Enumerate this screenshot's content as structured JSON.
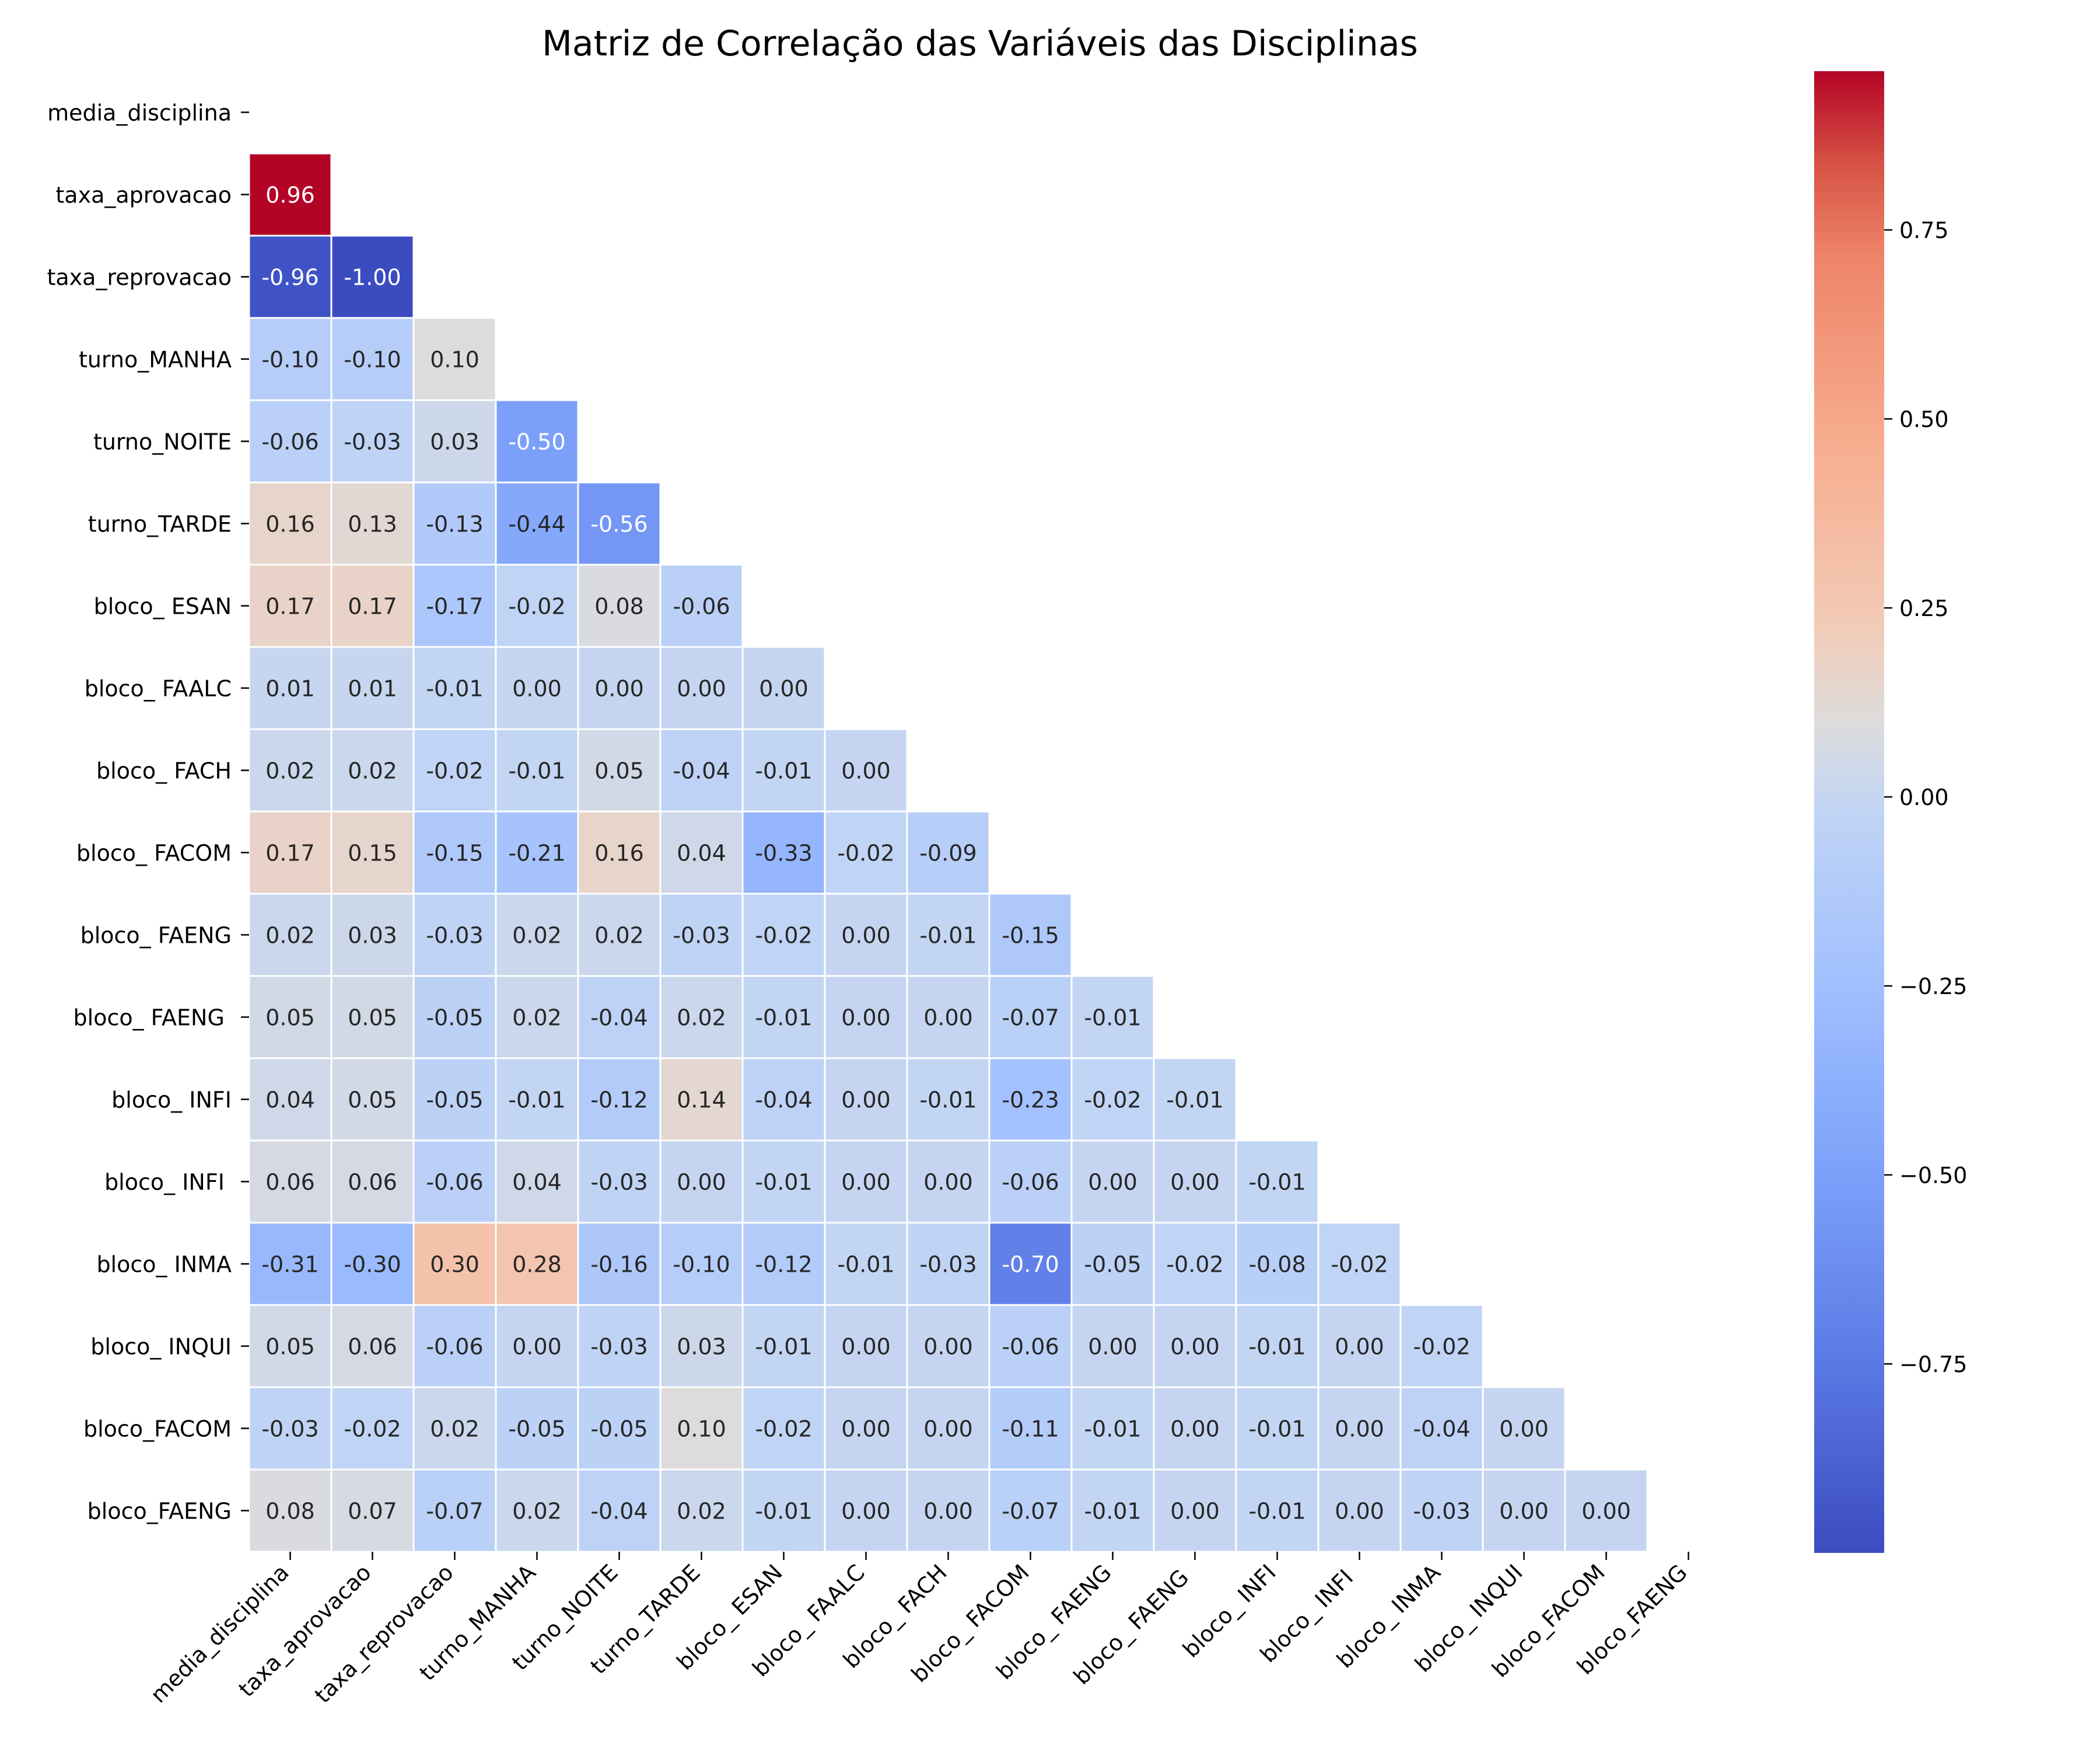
{
  "chart_data": {
    "type": "heatmap",
    "title": "Matriz de Correlação das Variáveis das Disciplinas",
    "mask": "upper-triangle-including-diagonal",
    "colormap": "coolwarm",
    "grid": false,
    "legend_placement": "right",
    "labels": [
      "media_disciplina",
      "taxa_aprovacao",
      "taxa_reprovacao",
      "turno_MANHA",
      "turno_NOITE",
      "turno_TARDE",
      "bloco_ ESAN",
      "bloco_ FAALC",
      "bloco_ FACH",
      "bloco_ FACOM",
      "bloco_ FAENG",
      "bloco_ FAENG ",
      "bloco_ INFI",
      "bloco_ INFI ",
      "bloco_ INMA",
      "bloco_ INQUI",
      "bloco_FACOM",
      "bloco_FAENG"
    ],
    "values": [
      [],
      [
        0.96
      ],
      [
        -0.96,
        -1.0
      ],
      [
        -0.1,
        -0.1,
        0.1
      ],
      [
        -0.06,
        -0.03,
        0.03,
        -0.5
      ],
      [
        0.16,
        0.13,
        -0.13,
        -0.44,
        -0.56
      ],
      [
        0.17,
        0.17,
        -0.17,
        -0.02,
        0.08,
        -0.06
      ],
      [
        0.01,
        0.01,
        -0.01,
        -0.0,
        0.0,
        0.0,
        -0.0
      ],
      [
        0.02,
        0.02,
        -0.02,
        -0.01,
        0.05,
        -0.04,
        -0.01,
        -0.0
      ],
      [
        0.17,
        0.15,
        -0.15,
        -0.21,
        0.16,
        0.04,
        -0.33,
        -0.02,
        -0.09
      ],
      [
        0.02,
        0.03,
        -0.03,
        0.02,
        0.02,
        -0.03,
        -0.02,
        -0.0,
        -0.01,
        -0.15
      ],
      [
        0.05,
        0.05,
        -0.05,
        0.02,
        -0.04,
        0.02,
        -0.01,
        -0.0,
        -0.0,
        -0.07,
        -0.01
      ],
      [
        0.04,
        0.05,
        -0.05,
        -0.01,
        -0.12,
        0.14,
        -0.04,
        -0.0,
        -0.01,
        -0.23,
        -0.02,
        -0.01
      ],
      [
        0.06,
        0.06,
        -0.06,
        0.04,
        -0.03,
        -0.0,
        -0.01,
        -0.0,
        -0.0,
        -0.06,
        -0.0,
        -0.0,
        -0.01
      ],
      [
        -0.31,
        -0.3,
        0.3,
        0.28,
        -0.16,
        -0.1,
        -0.12,
        -0.01,
        -0.03,
        -0.7,
        -0.05,
        -0.02,
        -0.08,
        -0.02
      ],
      [
        0.05,
        0.06,
        -0.06,
        0.0,
        -0.03,
        0.03,
        -0.01,
        -0.0,
        -0.0,
        -0.06,
        -0.0,
        -0.0,
        -0.01,
        -0.0,
        -0.02
      ],
      [
        -0.03,
        -0.02,
        0.02,
        -0.05,
        -0.05,
        0.1,
        -0.02,
        -0.0,
        -0.0,
        -0.11,
        -0.01,
        -0.0,
        -0.01,
        -0.0,
        -0.04,
        -0.0
      ],
      [
        0.08,
        0.07,
        -0.07,
        0.02,
        -0.04,
        0.02,
        -0.01,
        -0.0,
        -0.0,
        -0.07,
        -0.01,
        -0.0,
        -0.01,
        -0.0,
        -0.03,
        -0.0,
        -0.0
      ]
    ],
    "colorbar": {
      "vmin": -1.0,
      "vmax": 0.96,
      "ticks": [
        0.75,
        0.5,
        0.25,
        0.0,
        -0.25,
        -0.5,
        -0.75
      ],
      "tick_labels": [
        "0.75",
        "0.50",
        "0.25",
        "0.00",
        "−0.25",
        "−0.50",
        "−0.75"
      ]
    }
  }
}
